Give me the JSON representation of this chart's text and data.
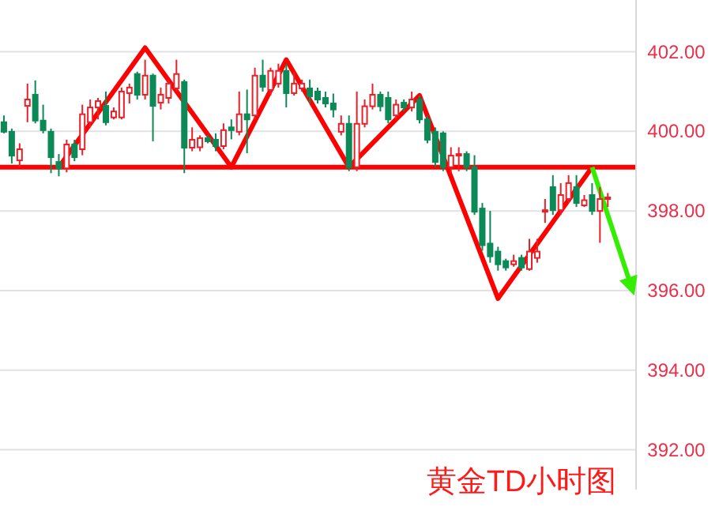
{
  "chart_data": {
    "type": "candlestick",
    "title": "黄金TD小时图",
    "categories": [
      null,
      null,
      null,
      null,
      null,
      null,
      null,
      null,
      null,
      null,
      null,
      null,
      null,
      null,
      null,
      null,
      null,
      null,
      null,
      null,
      null,
      null,
      null,
      null,
      null,
      null,
      null,
      null,
      null,
      null,
      null,
      null,
      null,
      null,
      null,
      null,
      null,
      null,
      null,
      null,
      null,
      null,
      null,
      null,
      null,
      null,
      null,
      null,
      null,
      null,
      null,
      null,
      null,
      null,
      null,
      null,
      null,
      null,
      null,
      null,
      null,
      null,
      null,
      null,
      null,
      null,
      null,
      null,
      null,
      null,
      null,
      null,
      null,
      null,
      null,
      null,
      null,
      null,
      null,
      null,
      null
    ],
    "ohlc": [
      [
        400.23,
        400.4,
        399.95,
        399.99
      ],
      [
        399.99,
        400.07,
        399.19,
        399.39
      ],
      [
        399.27,
        399.7,
        399.1,
        399.55
      ],
      [
        400.64,
        401.2,
        400.23,
        400.8
      ],
      [
        400.92,
        401.28,
        400.2,
        400.27
      ],
      [
        400.27,
        400.67,
        399.95,
        400.03
      ],
      [
        399.99,
        400.07,
        398.95,
        399.35
      ],
      [
        399.23,
        399.43,
        398.87,
        399.07
      ],
      [
        399.07,
        399.79,
        398.97,
        399.67
      ],
      [
        399.67,
        399.79,
        399.25,
        399.35
      ],
      [
        399.55,
        400.67,
        399.4,
        400.43
      ],
      [
        400.23,
        400.8,
        400.1,
        400.6
      ],
      [
        400.6,
        400.84,
        400.3,
        400.76
      ],
      [
        400.64,
        401.0,
        400.15,
        400.23
      ],
      [
        400.35,
        400.6,
        400.3,
        400.5
      ],
      [
        400.35,
        401.1,
        400.3,
        401.0
      ],
      [
        400.96,
        401.2,
        400.7,
        401.1
      ],
      [
        401.44,
        401.5,
        400.8,
        400.92
      ],
      [
        400.92,
        401.8,
        400.8,
        401.4
      ],
      [
        401.4,
        401.45,
        399.75,
        400.64
      ],
      [
        400.72,
        401.1,
        400.55,
        400.92
      ],
      [
        400.84,
        401.3,
        400.7,
        401.2
      ],
      [
        401.08,
        401.8,
        401.0,
        401.44
      ],
      [
        401.24,
        401.3,
        398.95,
        399.59
      ],
      [
        399.59,
        400.1,
        399.5,
        399.79
      ],
      [
        399.6,
        399.9,
        399.5,
        399.83
      ],
      [
        399.83,
        399.9,
        399.7,
        399.75
      ],
      [
        399.79,
        399.95,
        399.5,
        399.63
      ],
      [
        399.63,
        400.2,
        399.55,
        400.03
      ],
      [
        400.1,
        400.3,
        399.8,
        400.03
      ],
      [
        399.99,
        401.0,
        399.9,
        400.43
      ],
      [
        400.43,
        401.05,
        399.45,
        400.3
      ],
      [
        400.4,
        401.6,
        400.3,
        401.4
      ],
      [
        401.4,
        401.8,
        401.0,
        401.12
      ],
      [
        401.04,
        401.6,
        400.9,
        401.52
      ],
      [
        401.2,
        401.7,
        401.1,
        401.52
      ],
      [
        401.52,
        401.7,
        400.6,
        400.96
      ],
      [
        400.96,
        401.5,
        400.9,
        401.2
      ],
      [
        401.08,
        401.3,
        401.0,
        401.2
      ],
      [
        401.08,
        401.3,
        400.7,
        400.88
      ],
      [
        401.0,
        401.1,
        400.7,
        400.8
      ],
      [
        400.84,
        401.0,
        400.6,
        400.7
      ],
      [
        400.7,
        400.95,
        400.35,
        400.55
      ],
      [
        399.99,
        400.4,
        399.9,
        400.19
      ],
      [
        400.19,
        400.4,
        399.0,
        399.1
      ],
      [
        399.1,
        401.0,
        399.0,
        400.19
      ],
      [
        400.19,
        400.8,
        400.1,
        400.63
      ],
      [
        400.63,
        401.2,
        400.55,
        400.92
      ],
      [
        400.92,
        401.0,
        400.5,
        400.63
      ],
      [
        400.84,
        401.0,
        400.2,
        400.3
      ],
      [
        400.4,
        400.8,
        400.3,
        400.67
      ],
      [
        400.72,
        400.8,
        400.5,
        400.6
      ],
      [
        400.6,
        401.0,
        400.5,
        400.8
      ],
      [
        400.8,
        400.9,
        400.2,
        400.3
      ],
      [
        400.3,
        400.4,
        399.7,
        399.79
      ],
      [
        399.99,
        400.1,
        399.1,
        399.23
      ],
      [
        399.95,
        400.0,
        399.0,
        399.1
      ],
      [
        399.1,
        399.6,
        398.95,
        399.39
      ],
      [
        399.39,
        399.6,
        399.0,
        399.43
      ],
      [
        399.43,
        399.5,
        399.0,
        399.1
      ],
      [
        399.1,
        399.4,
        397.9,
        397.98
      ],
      [
        398.06,
        398.2,
        397.0,
        397.14
      ],
      [
        397.18,
        398.0,
        396.7,
        396.86
      ],
      [
        396.98,
        397.1,
        396.5,
        396.66
      ],
      [
        396.74,
        396.8,
        396.5,
        396.58
      ],
      [
        396.66,
        396.9,
        396.6,
        396.74
      ],
      [
        396.82,
        396.9,
        396.5,
        396.58
      ],
      [
        396.54,
        397.3,
        396.5,
        396.98
      ],
      [
        396.82,
        397.3,
        396.7,
        396.98
      ],
      [
        398.0,
        398.3,
        397.7,
        398.02
      ],
      [
        398.6,
        398.9,
        397.9,
        398.02
      ],
      [
        398.02,
        398.7,
        397.9,
        398.4
      ],
      [
        398.3,
        398.9,
        398.2,
        398.7
      ],
      [
        398.6,
        398.9,
        398.1,
        398.2
      ],
      [
        398.14,
        398.4,
        398.1,
        398.27
      ],
      [
        398.4,
        398.7,
        397.9,
        398.0
      ],
      [
        398.0,
        398.6,
        397.2,
        398.3
      ],
      [
        398.3,
        398.45,
        398.1,
        398.34
      ],
      null,
      null,
      null
    ],
    "series": [
      {
        "type": "line",
        "color": "#ff0000",
        "values": [
          null,
          null,
          null,
          null,
          null,
          null,
          null,
          399.1,
          null,
          null,
          null,
          null,
          null,
          null,
          null,
          null,
          null,
          null,
          402.1,
          null,
          null,
          null,
          null,
          null,
          null,
          null,
          null,
          null,
          null,
          399.1,
          null,
          null,
          null,
          null,
          null,
          null,
          401.8,
          null,
          null,
          null,
          null,
          null,
          null,
          null,
          399.1,
          null,
          null,
          null,
          null,
          null,
          null,
          null,
          null,
          400.9,
          null,
          null,
          null,
          null,
          null,
          null,
          null,
          null,
          null,
          395.8,
          null,
          null,
          null,
          null,
          null,
          null,
          null,
          null,
          null,
          null,
          null,
          399.1,
          null,
          null,
          null,
          null,
          null
        ]
      },
      {
        "type": "line",
        "color": "#33ee00",
        "values": [
          null,
          null,
          null,
          null,
          null,
          null,
          null,
          null,
          null,
          null,
          null,
          null,
          null,
          null,
          null,
          null,
          null,
          null,
          null,
          null,
          null,
          null,
          null,
          null,
          null,
          null,
          null,
          null,
          null,
          null,
          null,
          null,
          null,
          null,
          null,
          null,
          null,
          null,
          null,
          null,
          null,
          null,
          null,
          null,
          null,
          null,
          null,
          null,
          null,
          null,
          null,
          null,
          null,
          null,
          null,
          null,
          null,
          null,
          null,
          null,
          null,
          null,
          null,
          null,
          null,
          null,
          null,
          null,
          null,
          null,
          null,
          null,
          null,
          null,
          null,
          399.1,
          null,
          null,
          null,
          null,
          396.1
        ]
      }
    ],
    "ref_lines": [
      {
        "axis": "y",
        "value": 399.1,
        "color": "#ff0000"
      }
    ],
    "ylim": [
      391.0,
      403.3
    ],
    "yticks": [
      {
        "value": 392,
        "label": "392.00"
      },
      {
        "value": 394,
        "label": "394.00"
      },
      {
        "value": 396,
        "label": "396.00"
      },
      {
        "value": 398,
        "label": "398.00"
      },
      {
        "value": 400,
        "label": "400.00"
      },
      {
        "value": 402,
        "label": "402.00"
      }
    ],
    "grid": "y"
  }
}
